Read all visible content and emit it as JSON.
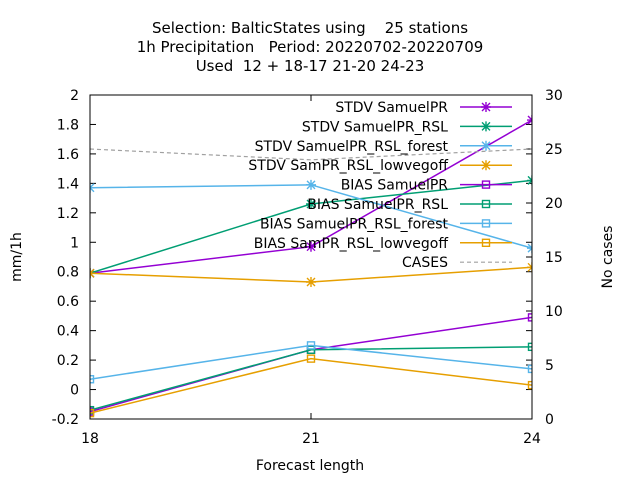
{
  "chart_data": {
    "type": "line",
    "title": [
      "Selection: BalticStates using    25 stations",
      "1h Precipitation   Period: 20220702-20220709",
      "Used  12 + 18-17 21-20 24-23"
    ],
    "xlabel": "Forecast length",
    "ylabel": "mm/1h",
    "y2label": "No cases",
    "x": [
      18,
      21,
      24
    ],
    "xlim": [
      18,
      24
    ],
    "ylim": [
      -0.2,
      2
    ],
    "y2lim": [
      0,
      30
    ],
    "xticks": [
      "18",
      "21",
      "24"
    ],
    "yticks": [
      "-0.2",
      "0",
      "0.2",
      "0.4",
      "0.6",
      "0.8",
      "1",
      "1.2",
      "1.4",
      "1.6",
      "1.8",
      "2"
    ],
    "y2ticks": [
      "0",
      "5",
      "10",
      "15",
      "20",
      "25",
      "30"
    ],
    "grid": false,
    "legend_position": "top-right",
    "series": [
      {
        "name": "STDV SamuelPR",
        "color": "#9400d3",
        "marker": "x",
        "values": [
          0.79,
          0.97,
          1.83
        ]
      },
      {
        "name": "STDV SamuelPR_RSL",
        "color": "#009e73",
        "marker": "x",
        "values": [
          0.79,
          1.26,
          1.42
        ]
      },
      {
        "name": "STDV SamuelPR_RSL_forest",
        "color": "#56b4e9",
        "marker": "x",
        "values": [
          1.37,
          1.39,
          0.96
        ]
      },
      {
        "name": "STDV SamPR_RSL_lowvegoff",
        "color": "#e69f00",
        "marker": "x",
        "values": [
          0.79,
          0.73,
          0.83
        ]
      },
      {
        "name": "BIAS SamuelPR",
        "color": "#9400d3",
        "marker": "square",
        "values": [
          -0.15,
          0.27,
          0.49
        ]
      },
      {
        "name": "BIAS SamuelPR_RSL",
        "color": "#009e73",
        "marker": "square",
        "values": [
          -0.14,
          0.27,
          0.29
        ]
      },
      {
        "name": "BIAS SamuelPR_RSL_forest",
        "color": "#56b4e9",
        "marker": "square",
        "values": [
          0.07,
          0.3,
          0.14
        ]
      },
      {
        "name": "BIAS SamPR_RSL_lowvegoff",
        "color": "#e69f00",
        "marker": "square",
        "values": [
          -0.16,
          0.21,
          0.03
        ]
      },
      {
        "name": "CASES",
        "color": "#a0a0a0",
        "marker": "none",
        "dashed": true,
        "axis": "y2",
        "values": [
          25,
          24,
          25
        ]
      }
    ]
  }
}
